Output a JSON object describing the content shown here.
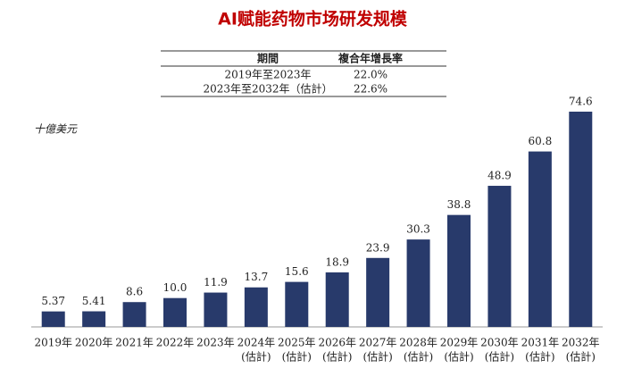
{
  "chart_data": {
    "type": "bar",
    "title": "AI赋能药物市场研发规模",
    "unit_label": "十億美元",
    "cagr_table": {
      "header": [
        "期間",
        "複合年增長率"
      ],
      "rows": [
        [
          "2019年至2023年",
          "22.0%"
        ],
        [
          "2023年至2032年（估計）",
          "22.6%"
        ]
      ]
    },
    "categories": [
      [
        "2019年"
      ],
      [
        "2020年"
      ],
      [
        "2021年"
      ],
      [
        "2022年"
      ],
      [
        "2023年"
      ],
      [
        "2024年",
        "(估計)"
      ],
      [
        "2025年",
        "(估計)"
      ],
      [
        "2026年",
        "(估計)"
      ],
      [
        "2027年",
        "(估計)"
      ],
      [
        "2028年",
        "(估計)"
      ],
      [
        "2029年",
        "(估計)"
      ],
      [
        "2030年",
        "(估計)"
      ],
      [
        "2031年",
        "(估計)"
      ],
      [
        "2032年",
        "(估計)"
      ]
    ],
    "values": [
      5.37,
      5.41,
      8.6,
      10.0,
      11.9,
      13.7,
      15.6,
      18.9,
      23.9,
      30.3,
      38.8,
      48.9,
      60.8,
      74.6
    ],
    "value_labels": [
      "5.37",
      "5.41",
      "8.6",
      "10.0",
      "11.9",
      "13.7",
      "15.6",
      "18.9",
      "23.9",
      "30.3",
      "38.8",
      "48.9",
      "60.8",
      "74.6"
    ],
    "color": "#283a6b"
  }
}
